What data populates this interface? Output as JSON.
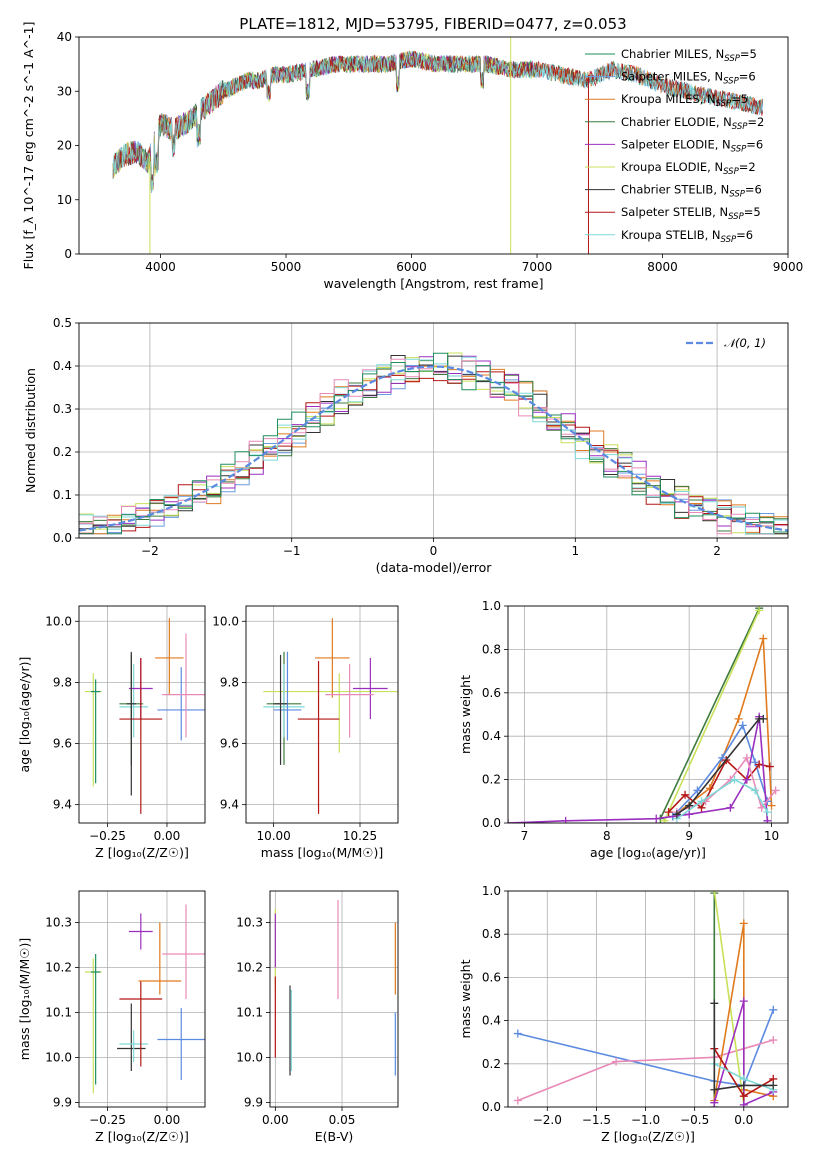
{
  "title": "PLATE=1812, MJD=53795, FIBERID=0477, z=0.053",
  "colors": {
    "Chabrier MILES": "#1f8f5e",
    "Salpeter MILES": "#6a9be0",
    "Kroupa MILES": "#e07a1f",
    "Chabrier ELODIE": "#3d7a3d",
    "Salpeter ELODIE": "#9b2fbf",
    "Kroupa ELODIE": "#c8e05a",
    "Chabrier STELIB": "#333333",
    "Salpeter STELIB": "#b51616",
    "Kroupa STELIB": "#7fd8d8",
    "pink": "#e88ab8",
    "normal": "#5b8ae0"
  },
  "chart_data": [
    {
      "id": "spectrum",
      "type": "line",
      "xlabel": "wavelength [Angstrom, rest frame]",
      "ylabel": "Flux [f_λ 10^-17 erg cm^-2 s^-1 A^-1]",
      "xlim": [
        3350,
        9000
      ],
      "ylim": [
        0,
        40
      ],
      "xticks": [
        4000,
        5000,
        6000,
        7000,
        8000,
        9000
      ],
      "yticks": [
        0,
        10,
        20,
        30,
        40
      ],
      "legend_position": "right",
      "legend": [
        {
          "label": "Chabrier MILES, N",
          "sub": "SSP",
          "suffix": "=5",
          "color": "#1f8f5e"
        },
        {
          "label": "Salpeter MILES, N",
          "sub": "SSP",
          "suffix": "=6",
          "color": "#6a9be0"
        },
        {
          "label": "Kroupa MILES, N",
          "sub": "SSP",
          "suffix": "=5",
          "color": "#e07a1f"
        },
        {
          "label": "Chabrier ELODIE, N",
          "sub": "SSP",
          "suffix": "=2",
          "color": "#3d7a3d"
        },
        {
          "label": "Salpeter ELODIE, N",
          "sub": "SSP",
          "suffix": "=6",
          "color": "#9b2fbf"
        },
        {
          "label": "Kroupa ELODIE, N",
          "sub": "SSP",
          "suffix": "=2",
          "color": "#c8e05a"
        },
        {
          "label": "Chabrier STELIB, N",
          "sub": "SSP",
          "suffix": "=6",
          "color": "#333333"
        },
        {
          "label": "Salpeter STELIB, N",
          "sub": "SSP",
          "suffix": "=5",
          "color": "#b51616"
        },
        {
          "label": "Kroupa STELIB, N",
          "sub": "SSP",
          "suffix": "=6",
          "color": "#7fd8d8"
        }
      ],
      "continuum": {
        "x": [
          3620,
          3700,
          3800,
          3900,
          4000,
          4100,
          4200,
          4300,
          4400,
          4500,
          4600,
          4700,
          4800,
          4900,
          5000,
          5200,
          5400,
          5600,
          5800,
          6000,
          6200,
          6400,
          6600,
          6800,
          7000,
          7200,
          7400,
          7600,
          7800,
          8000,
          8200,
          8400,
          8600,
          8800
        ],
        "y": [
          16,
          18,
          19,
          17,
          24,
          23,
          24,
          26,
          28,
          30,
          31,
          32,
          32,
          33,
          33,
          34,
          35,
          35,
          35,
          36,
          35,
          35,
          35,
          34,
          34,
          33,
          32,
          34,
          33,
          31,
          30,
          29,
          28,
          27
        ]
      }
    },
    {
      "id": "residuals",
      "type": "histogram",
      "xlabel": "(data-model)/error",
      "ylabel": "Normed distribution",
      "xlim": [
        -2.5,
        2.5
      ],
      "ylim": [
        0,
        0.5
      ],
      "xticks": [
        -2,
        -1,
        0,
        1,
        2
      ],
      "yticks": [
        0.0,
        0.1,
        0.2,
        0.3,
        0.4,
        0.5
      ],
      "legend_label": "𝒩(0, 1)",
      "legend_position": "top-right",
      "bin_width": 0.1
    },
    {
      "id": "age-Z",
      "type": "scatter",
      "xlabel": "Z [log₁₀(Z/Z☉)]",
      "ylabel": "age  [log₁₀(age/yr)]",
      "xlim": [
        -0.37,
        0.16
      ],
      "ylim": [
        9.34,
        10.05
      ],
      "xticks": [
        -0.25,
        0.0
      ],
      "yticks": [
        9.4,
        9.6,
        9.8,
        10.0
      ],
      "points": [
        {
          "x": -0.31,
          "y": 9.77,
          "xe": 0.035,
          "ye": [
            0.31,
            0.06
          ],
          "color": "#c8e05a"
        },
        {
          "x": -0.3,
          "y": 9.77,
          "xe": 0.02,
          "ye": [
            0.3,
            0.04
          ],
          "color": "#1f8f5e"
        },
        {
          "x": -0.15,
          "y": 9.73,
          "xe": 0.05,
          "ye": [
            0.2,
            0.16
          ],
          "color": "#3d7a3d"
        },
        {
          "x": -0.14,
          "y": 9.72,
          "xe": 0.06,
          "ye": [
            0.1,
            0.14
          ],
          "color": "#7fd8d8"
        },
        {
          "x": -0.11,
          "y": 9.78,
          "xe": 0.05,
          "ye": [
            0.1,
            0.1
          ],
          "color": "#9b2fbf"
        },
        {
          "x": -0.11,
          "y": 9.68,
          "xe": 0.09,
          "ye": [
            0.31,
            0.2
          ],
          "color": "#b51616"
        },
        {
          "x": 0.01,
          "y": 9.88,
          "xe": 0.06,
          "ye": [
            0.12,
            0.13
          ],
          "color": "#e07a1f"
        },
        {
          "x": 0.06,
          "y": 9.71,
          "xe": 0.1,
          "ye": [
            0.1,
            0.14
          ],
          "color": "#5b8ae0"
        },
        {
          "x": 0.08,
          "y": 9.76,
          "xe": 0.1,
          "ye": [
            0.14,
            0.2
          ],
          "color": "#e88ab8"
        },
        {
          "x": -0.15,
          "y": 9.73,
          "xe": 0.02,
          "ye": [
            0.3,
            0.17
          ],
          "color": "#333333"
        }
      ]
    },
    {
      "id": "age-mass",
      "type": "scatter",
      "xlabel": "mass [log₁₀(M/M☉)]",
      "ylabel": "",
      "xlim": [
        9.92,
        10.36
      ],
      "ylim": [
        9.34,
        10.05
      ],
      "xticks": [
        10.0,
        10.25
      ],
      "yticks": [
        9.4,
        9.6,
        9.8,
        10.0
      ],
      "points": [
        {
          "x": 10.19,
          "y": 9.77,
          "xe": 0.22,
          "ye": [
            0.2,
            0.06
          ],
          "color": "#c8e05a"
        },
        {
          "x": 10.03,
          "y": 9.73,
          "xe": 0.05,
          "ye": [
            0.2,
            0.17
          ],
          "color": "#3d7a3d"
        },
        {
          "x": 10.03,
          "y": 9.72,
          "xe": 0.06,
          "ye": [
            0.1,
            0.14
          ],
          "color": "#7fd8d8"
        },
        {
          "x": 10.04,
          "y": 9.71,
          "xe": 0.04,
          "ye": [
            0.1,
            0.19
          ],
          "color": "#5b8ae0"
        },
        {
          "x": 10.13,
          "y": 9.68,
          "xe": 0.06,
          "ye": [
            0.31,
            0.19
          ],
          "color": "#b51616"
        },
        {
          "x": 10.17,
          "y": 9.88,
          "xe": 0.05,
          "ye": [
            0.13,
            0.13
          ],
          "color": "#e07a1f"
        },
        {
          "x": 10.28,
          "y": 9.78,
          "xe": 0.05,
          "ye": [
            0.1,
            0.1
          ],
          "color": "#9b2fbf"
        },
        {
          "x": 10.22,
          "y": 9.76,
          "xe": 0.07,
          "ye": [
            0.14,
            0.1
          ],
          "color": "#e88ab8"
        },
        {
          "x": 10.02,
          "y": 9.73,
          "xe": 0.02,
          "ye": [
            0.2,
            0.16
          ],
          "color": "#333333"
        }
      ]
    },
    {
      "id": "weight-age",
      "type": "line",
      "xlabel": "age  [log₁₀(age/yr)]",
      "ylabel": "mass weight",
      "xlim": [
        6.8,
        10.2
      ],
      "ylim": [
        0,
        1.0
      ],
      "xticks": [
        7,
        8,
        9,
        10
      ],
      "yticks": [
        0.0,
        0.2,
        0.4,
        0.6,
        0.8,
        1.0
      ],
      "series": [
        {
          "color": "#3d7a3d",
          "x": [
            8.65,
            9.85
          ],
          "y": [
            0.02,
            0.99
          ]
        },
        {
          "color": "#c8e05a",
          "x": [
            8.7,
            9.85
          ],
          "y": [
            0.01,
            0.98
          ]
        },
        {
          "color": "#e07a1f",
          "x": [
            8.8,
            9.25,
            9.6,
            9.9,
            10.0
          ],
          "y": [
            0.03,
            0.16,
            0.48,
            0.85,
            0.08
          ]
        },
        {
          "color": "#5b8ae0",
          "x": [
            8.8,
            9.1,
            9.4,
            9.65,
            9.8,
            9.95
          ],
          "y": [
            0.03,
            0.15,
            0.3,
            0.45,
            0.28,
            0.1
          ]
        },
        {
          "color": "#b51616",
          "x": [
            8.75,
            8.95,
            9.15,
            9.45,
            9.7,
            9.85,
            9.98
          ],
          "y": [
            0.05,
            0.13,
            0.07,
            0.29,
            0.2,
            0.27,
            0.26
          ]
        },
        {
          "color": "#9b2fbf",
          "x": [
            6.8,
            7.5,
            8.6,
            9.0,
            9.5,
            9.7,
            9.85,
            9.95
          ],
          "y": [
            0.0,
            0.01,
            0.02,
            0.04,
            0.07,
            0.2,
            0.49,
            0.01
          ]
        },
        {
          "color": "#e88ab8",
          "x": [
            8.85,
            9.2,
            9.5,
            9.7,
            9.88,
            10.05
          ],
          "y": [
            0.05,
            0.1,
            0.2,
            0.3,
            0.07,
            0.15
          ]
        },
        {
          "color": "#7fd8d8",
          "x": [
            8.85,
            9.15,
            9.55,
            9.8,
            9.95
          ],
          "y": [
            0.02,
            0.1,
            0.2,
            0.15,
            0.05
          ]
        },
        {
          "color": "#333333",
          "x": [
            8.85,
            9.0,
            9.85,
            9.9
          ],
          "y": [
            0.04,
            0.08,
            0.48,
            0.48
          ]
        }
      ]
    },
    {
      "id": "mass-Z",
      "type": "scatter",
      "xlabel": "Z [log₁₀(Z/Z☉)]",
      "ylabel": "mass [log₁₀(M/M☉)]",
      "xlim": [
        -0.37,
        0.16
      ],
      "ylim": [
        9.89,
        10.37
      ],
      "xticks": [
        -0.25,
        0.0
      ],
      "yticks": [
        9.9,
        10.0,
        10.1,
        10.2,
        10.3
      ],
      "points": [
        {
          "x": -0.31,
          "y": 10.19,
          "xe": 0.035,
          "ye": [
            0.27,
            0.03
          ],
          "color": "#c8e05a"
        },
        {
          "x": -0.3,
          "y": 10.19,
          "xe": 0.02,
          "ye": [
            0.25,
            0.04
          ],
          "color": "#1f8f5e"
        },
        {
          "x": -0.15,
          "y": 10.02,
          "xe": 0.06,
          "ye": [
            0.05,
            0.1
          ],
          "color": "#333333"
        },
        {
          "x": -0.14,
          "y": 10.03,
          "xe": 0.06,
          "ye": [
            0.04,
            0.03
          ],
          "color": "#7fd8d8"
        },
        {
          "x": -0.11,
          "y": 10.28,
          "xe": 0.05,
          "ye": [
            0.04,
            0.04
          ],
          "color": "#9b2fbf"
        },
        {
          "x": -0.11,
          "y": 10.13,
          "xe": 0.09,
          "ye": [
            0.15,
            0.04
          ],
          "color": "#b51616"
        },
        {
          "x": -0.03,
          "y": 10.17,
          "xe": 0.09,
          "ye": [
            0.03,
            0.13
          ],
          "color": "#e07a1f"
        },
        {
          "x": 0.06,
          "y": 10.04,
          "xe": 0.1,
          "ye": [
            0.09,
            0.07
          ],
          "color": "#5b8ae0"
        },
        {
          "x": 0.08,
          "y": 10.23,
          "xe": 0.1,
          "ye": [
            0.1,
            0.11
          ],
          "color": "#e88ab8"
        }
      ]
    },
    {
      "id": "mass-EBV",
      "type": "scatter",
      "xlabel": "E(B-V)",
      "ylabel": "",
      "xlim": [
        -0.004,
        0.092
      ],
      "ylim": [
        9.89,
        10.37
      ],
      "xticks": [
        0.0,
        0.05
      ],
      "yticks": [
        9.9,
        10.0,
        10.1,
        10.2,
        10.3
      ],
      "points": [
        {
          "x": 0.0,
          "y": 10.2,
          "ye": [
            0.05,
            0.13
          ],
          "color": "#c8e05a"
        },
        {
          "x": 0.0,
          "y": 10.1,
          "ye": [
            0.1,
            0.08
          ],
          "color": "#b51616"
        },
        {
          "x": 0.0,
          "y": 10.25,
          "ye": [
            0.05,
            0.07
          ],
          "color": "#9b2fbf"
        },
        {
          "x": 0.011,
          "y": 10.06,
          "ye": [
            0.1,
            0.1
          ],
          "color": "#333333"
        },
        {
          "x": 0.012,
          "y": 10.06,
          "ye": [
            0.09,
            0.09
          ],
          "color": "#7fd8d8"
        },
        {
          "x": 0.047,
          "y": 10.24,
          "ye": [
            0.11,
            0.11
          ],
          "color": "#e88ab8"
        },
        {
          "x": 0.09,
          "y": 10.22,
          "ye": [
            0.08,
            0.08
          ],
          "color": "#e07a1f"
        },
        {
          "x": 0.09,
          "y": 10.03,
          "ye": [
            0.07,
            0.07
          ],
          "color": "#5b8ae0"
        }
      ]
    },
    {
      "id": "weight-Z",
      "type": "line",
      "xlabel": "Z [log₁₀(Z/Z☉)]",
      "ylabel": "mass weight",
      "xlim": [
        -2.4,
        0.45
      ],
      "ylim": [
        0,
        1.0
      ],
      "xticks": [
        -2.0,
        -1.5,
        -1.0,
        -0.5,
        0.0
      ],
      "yticks": [
        0.0,
        0.2,
        0.4,
        0.6,
        0.8,
        1.0
      ],
      "series": [
        {
          "color": "#5b8ae0",
          "x": [
            -2.3,
            -0.3,
            0.0,
            0.3
          ],
          "y": [
            0.34,
            0.12,
            0.1,
            0.45
          ]
        },
        {
          "color": "#e88ab8",
          "x": [
            -2.3,
            -1.3,
            -0.3,
            0.3
          ],
          "y": [
            0.03,
            0.21,
            0.23,
            0.31
          ]
        },
        {
          "color": "#3d7a3d",
          "x": [
            -0.3,
            -0.3
          ],
          "y": [
            0.0,
            0.99
          ]
        },
        {
          "color": "#c8e05a",
          "x": [
            -0.3,
            0.0
          ],
          "y": [
            1.0,
            0.01
          ]
        },
        {
          "color": "#e07a1f",
          "x": [
            -0.3,
            0.0,
            0.0,
            0.3
          ],
          "y": [
            0.03,
            0.85,
            0.08,
            0.05
          ]
        },
        {
          "color": "#9b2fbf",
          "x": [
            -0.3,
            0.0,
            0.0,
            0.3
          ],
          "y": [
            0.02,
            0.49,
            0.01,
            0.07
          ]
        },
        {
          "color": "#b51616",
          "x": [
            -0.3,
            0.0,
            0.3
          ],
          "y": [
            0.27,
            0.05,
            0.13
          ]
        },
        {
          "color": "#7fd8d8",
          "x": [
            -0.3,
            0.0,
            0.3
          ],
          "y": [
            0.2,
            0.13,
            0.08
          ]
        },
        {
          "color": "#333333",
          "x": [
            -0.3,
            -0.3,
            0.0,
            0.3
          ],
          "y": [
            0.48,
            0.08,
            0.1,
            0.1
          ]
        }
      ]
    }
  ]
}
